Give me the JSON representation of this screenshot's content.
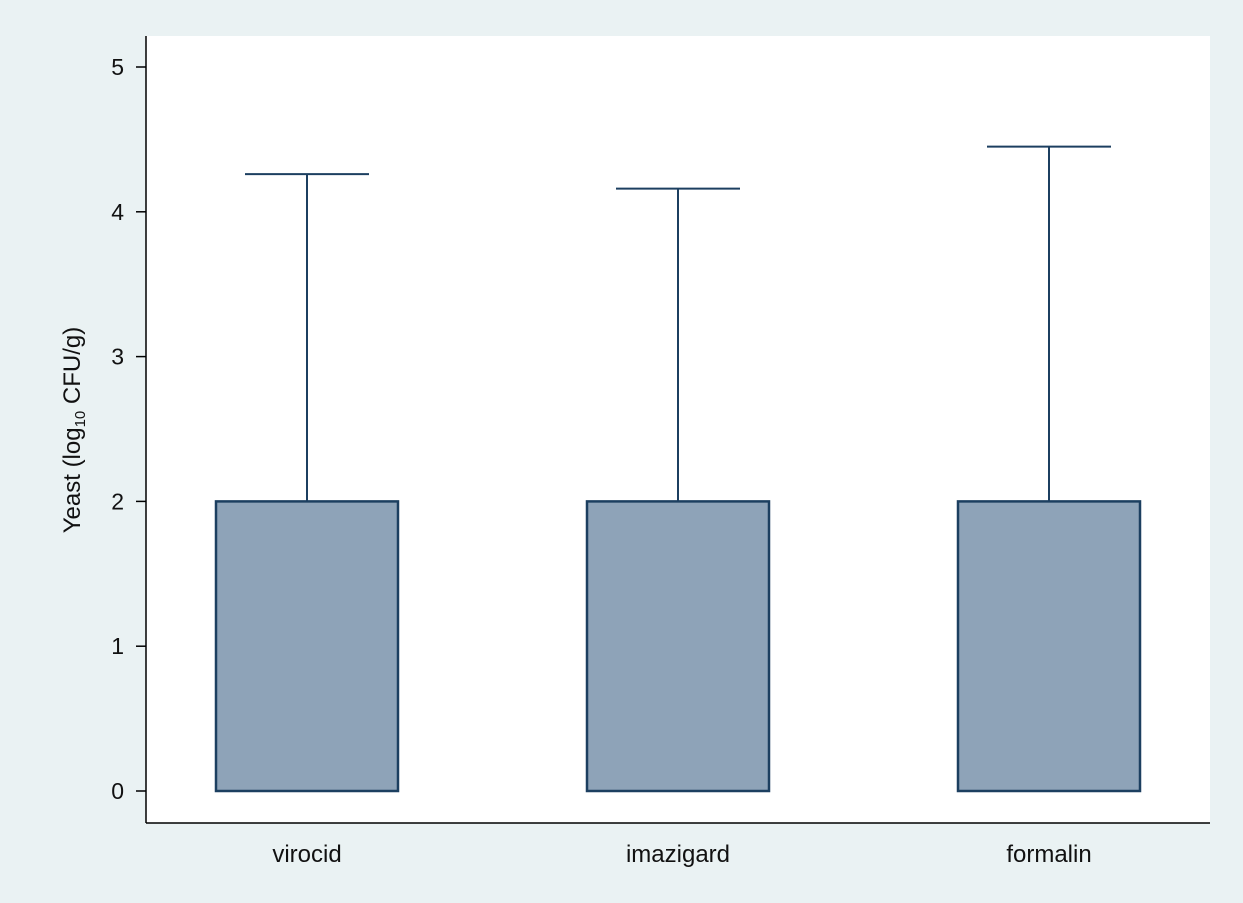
{
  "chart_data": {
    "type": "box",
    "title": "",
    "xlabel": "",
    "ylabel": {
      "prefix": "Yeast (log",
      "subscript": "10",
      "suffix": " CFU/g)"
    },
    "ylim": [
      0,
      5
    ],
    "yticks": [
      0,
      1,
      2,
      3,
      4,
      5
    ],
    "categories": [
      "virocid",
      "imazigard",
      "formalin"
    ],
    "series": [
      {
        "category": "virocid",
        "lower_whisker": 0,
        "q1": 0,
        "median": 0,
        "q3": 2,
        "upper_whisker": 4.26
      },
      {
        "category": "imazigard",
        "lower_whisker": 0,
        "q1": 0,
        "median": 0,
        "q3": 2,
        "upper_whisker": 4.16
      },
      {
        "category": "formalin",
        "lower_whisker": 0,
        "q1": 0,
        "median": 0,
        "q3": 2,
        "upper_whisker": 4.45
      }
    ],
    "grid": false,
    "legend": "none",
    "colors": {
      "outer_background": "#eaf2f3",
      "plot_background": "#ffffff",
      "box_fill": "#8ea3b8",
      "box_stroke": "#1c3f60",
      "whisker": "#1c3f60",
      "axis": "#000000"
    }
  }
}
